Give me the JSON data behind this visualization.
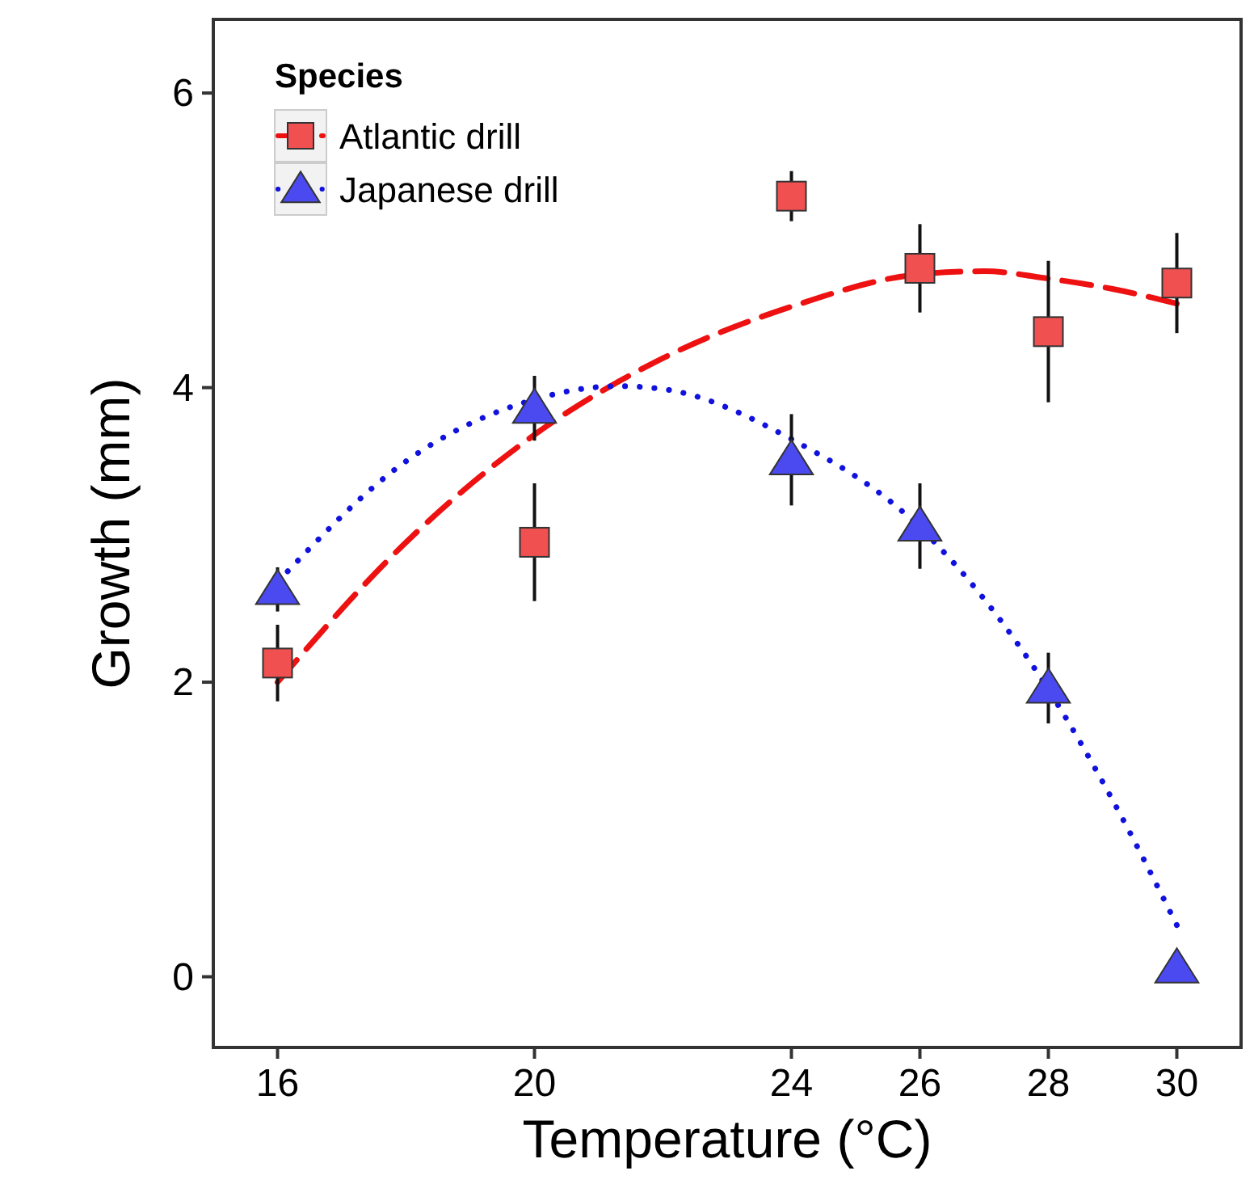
{
  "chart_data": {
    "type": "scatter",
    "xlabel": "Temperature (°C)",
    "ylabel": "Growth (mm)",
    "legend_title": "Species",
    "legend": "top left",
    "grid": false,
    "xlim": [
      15,
      31
    ],
    "xticks": [
      16,
      20,
      24,
      26,
      28,
      30
    ],
    "ylim": [
      -0.48,
      6.5
    ],
    "yticks": [
      0,
      2,
      4,
      6
    ],
    "series": [
      {
        "name": "Atlantic drill",
        "color": "#f05050",
        "marker": "square",
        "x": [
          16,
          20,
          24,
          26,
          28,
          30
        ],
        "values": [
          2.13,
          2.95,
          5.3,
          4.81,
          4.38,
          4.71
        ],
        "errors": [
          0.26,
          0.4,
          0.17,
          0.3,
          0.48,
          0.34
        ]
      },
      {
        "name": "Japanese drill",
        "color": "#4a4af0",
        "marker": "triangle",
        "x": [
          16,
          20,
          24,
          26,
          28,
          30
        ],
        "values": [
          2.63,
          3.86,
          3.51,
          3.06,
          1.96,
          0.06
        ],
        "errors": [
          0.15,
          0.22,
          0.31,
          0.29,
          0.24,
          null
        ]
      },
      {
        "type": "line",
        "color": "#ee1111",
        "line_style": "dashed",
        "x": [
          16,
          18,
          20,
          22,
          24,
          26,
          27,
          28,
          29,
          30
        ],
        "values": [
          2.0,
          2.95,
          3.68,
          4.2,
          4.55,
          4.77,
          4.79,
          4.74,
          4.67,
          4.57
        ]
      },
      {
        "type": "line",
        "color": "#1111dd",
        "line_style": "dotted",
        "x": [
          16,
          18,
          20,
          21.3,
          22,
          24,
          26,
          28,
          29,
          30
        ],
        "values": [
          2.68,
          3.5,
          3.92,
          4.01,
          3.99,
          3.65,
          3.05,
          1.95,
          1.2,
          0.35
        ]
      }
    ]
  }
}
